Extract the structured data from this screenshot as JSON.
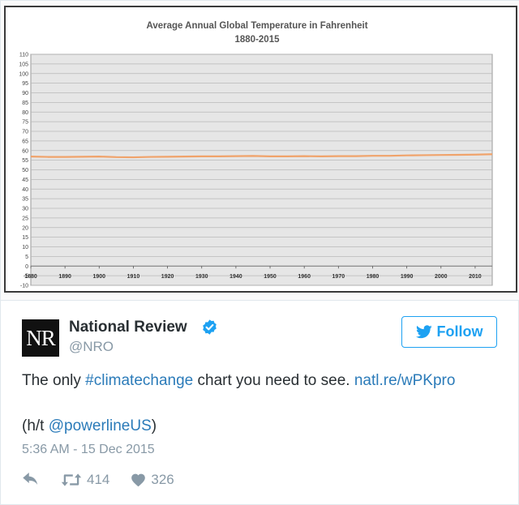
{
  "chart_data": {
    "type": "line",
    "title": "Average Annual Global Temperature in Fahrenheit",
    "subtitle": "1880-2015",
    "xlabel": "",
    "ylabel": "",
    "xlim": [
      1880,
      2015
    ],
    "ylim": [
      -10,
      110
    ],
    "x_ticks": [
      "1880",
      "1890",
      "1900",
      "1910",
      "1920",
      "1930",
      "1940",
      "1950",
      "1960",
      "1970",
      "1980",
      "1990",
      "2000",
      "2010"
    ],
    "y_ticks": [
      "110",
      "105",
      "100",
      "95",
      "90",
      "85",
      "80",
      "75",
      "70",
      "65",
      "60",
      "55",
      "50",
      "45",
      "40",
      "35",
      "30",
      "25",
      "20",
      "15",
      "10",
      "5",
      "0",
      "-5",
      "-10"
    ],
    "grid": true,
    "series": [
      {
        "color": "#f0a36b",
        "x": [
          1880,
          1885,
          1890,
          1895,
          1900,
          1905,
          1910,
          1915,
          1920,
          1925,
          1930,
          1935,
          1940,
          1945,
          1950,
          1955,
          1960,
          1965,
          1970,
          1975,
          1980,
          1985,
          1990,
          1995,
          2000,
          2005,
          2010,
          2015
        ],
        "values": [
          56.9,
          56.7,
          56.7,
          56.8,
          56.9,
          56.6,
          56.5,
          56.7,
          56.8,
          56.9,
          57.0,
          57.0,
          57.1,
          57.2,
          57.0,
          57.0,
          57.1,
          57.0,
          57.1,
          57.1,
          57.3,
          57.3,
          57.5,
          57.6,
          57.7,
          57.8,
          57.9,
          58.1
        ]
      }
    ]
  },
  "tweet": {
    "avatar_text": "NR",
    "display_name": "National Review",
    "handle": "@NRO",
    "follow_label": "Follow",
    "text_before": "The only ",
    "hashtag": "#climatechange",
    "text_middle": " chart you need to see. ",
    "link": "natl.re/wPKpro",
    "ht_prefix": "(h/t ",
    "ht_mention": "@powerlineUS",
    "ht_suffix": ")",
    "timestamp": "5:36 AM - 15 Dec 2015",
    "retweets": "414",
    "likes": "326"
  },
  "colors": {
    "twitter_blue": "#1da1f2",
    "link_blue": "#2b7bb9",
    "muted": "#8899a6",
    "text": "#292f33",
    "plot_bg": "#e6e6e6",
    "series": "#f0a36b"
  },
  "icons": [
    "verified-icon",
    "twitter-bird-icon",
    "reply-icon",
    "retweet-icon",
    "heart-icon"
  ]
}
